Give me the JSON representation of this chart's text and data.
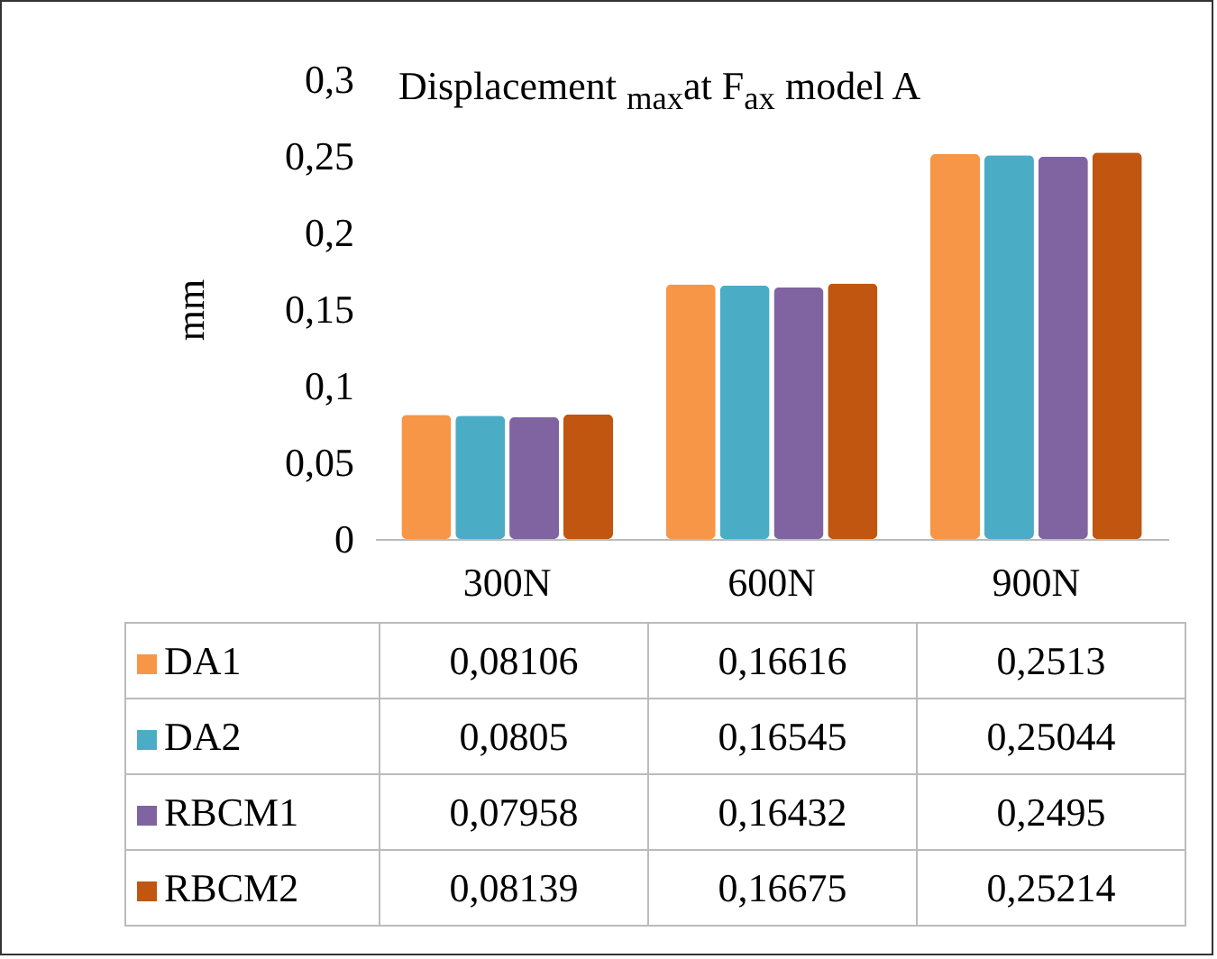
{
  "chart_data": {
    "type": "bar",
    "title": "Displacement $_{max}$at F$_{ax}$ model A",
    "ylabel": "mm",
    "categories": [
      "300N",
      "600N",
      "900N"
    ],
    "series": [
      {
        "name": "DA1",
        "color": "#f79646",
        "values": [
          0.08106,
          0.16616,
          0.2513
        ],
        "value_labels": [
          "0,08106",
          "0,16616",
          "0,2513"
        ]
      },
      {
        "name": "DA2",
        "color": "#4bacc6",
        "values": [
          0.0805,
          0.16545,
          0.25044
        ],
        "value_labels": [
          "0,0805",
          "0,16545",
          "0,25044"
        ]
      },
      {
        "name": "RBCM1",
        "color": "#8064a2",
        "values": [
          0.07958,
          0.16432,
          0.2495
        ],
        "value_labels": [
          "0,07958",
          "0,16432",
          "0,2495"
        ]
      },
      {
        "name": "RBCM2",
        "color": "#c0560f",
        "values": [
          0.08139,
          0.16675,
          0.25214
        ],
        "value_labels": [
          "0,08139",
          "0,16675",
          "0,25214"
        ]
      }
    ],
    "ylim": [
      0,
      0.3
    ],
    "yticks": [
      {
        "value": 0,
        "label": "0"
      },
      {
        "value": 0.05,
        "label": "0,05"
      },
      {
        "value": 0.1,
        "label": "0,1"
      },
      {
        "value": 0.15,
        "label": "0,15"
      },
      {
        "value": 0.2,
        "label": "0,2"
      },
      {
        "value": 0.25,
        "label": "0,25"
      },
      {
        "value": 0.3,
        "label": "0,3"
      }
    ],
    "legend": "bottom"
  }
}
